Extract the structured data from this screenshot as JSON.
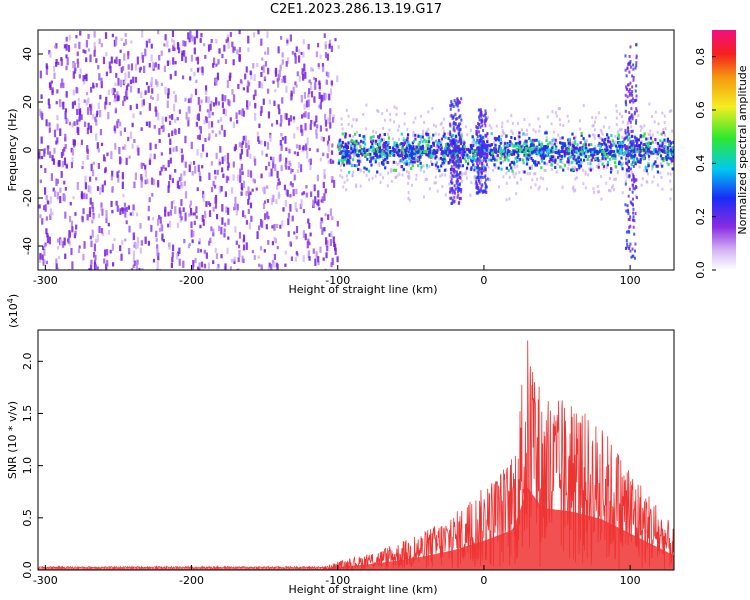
{
  "title": "C2E1.2023.286.13.19.G17",
  "chart_data": [
    {
      "type": "heatmap",
      "xlabel": "Height of straight line (km)",
      "ylabel": "Frequency (Hz)",
      "xlim": [
        -305,
        130
      ],
      "ylim": [
        -50,
        50
      ],
      "xticks": [
        -300,
        -200,
        -100,
        0,
        100
      ],
      "yticks": [
        -40,
        -20,
        0,
        20,
        40
      ],
      "grid": false,
      "regions": [
        {
          "x": [
            -305,
            -100
          ],
          "description_level": "noise",
          "amplitude": 0.2
        },
        {
          "x": [
            -100,
            130
          ],
          "center_frequency": 0,
          "band_halfwidth_hz": 8,
          "peak_amplitude": 0.45
        }
      ],
      "colorbar": {
        "label": "Normalized spectral amplitude",
        "range": [
          0.0,
          0.9
        ],
        "ticks": [
          0.0,
          0.2,
          0.4,
          0.6,
          0.8
        ]
      }
    },
    {
      "type": "line",
      "xlabel": "Height of straight line (km)",
      "ylabel": "SNR (10 * v/v)",
      "yscale_label": "(x10",
      "yscale_exp": "4",
      "yscale_close": ")",
      "xlim": [
        -305,
        130
      ],
      "ylim": [
        0,
        2.3
      ],
      "xticks": [
        -300,
        -200,
        -100,
        0,
        100
      ],
      "yticks": [
        "0.0",
        "0.5",
        "1.0",
        "1.5",
        "2.0"
      ],
      "series": [
        {
          "color": "#ee3333",
          "envelope_x": [
            -305,
            -110,
            -100,
            -80,
            -60,
            -40,
            -20,
            0,
            20,
            30,
            40,
            60,
            80,
            100,
            120,
            130
          ],
          "envelope_y": [
            0.03,
            0.03,
            0.08,
            0.15,
            0.25,
            0.38,
            0.55,
            0.8,
            1.1,
            2.25,
            1.7,
            1.6,
            1.4,
            1.0,
            0.6,
            0.4
          ]
        }
      ]
    }
  ],
  "colors": {
    "purple": "#7a1fe6",
    "blue": "#1b3cf2",
    "cyan": "#21d6d6",
    "green": "#3ae43a",
    "red": "#ee3333"
  }
}
